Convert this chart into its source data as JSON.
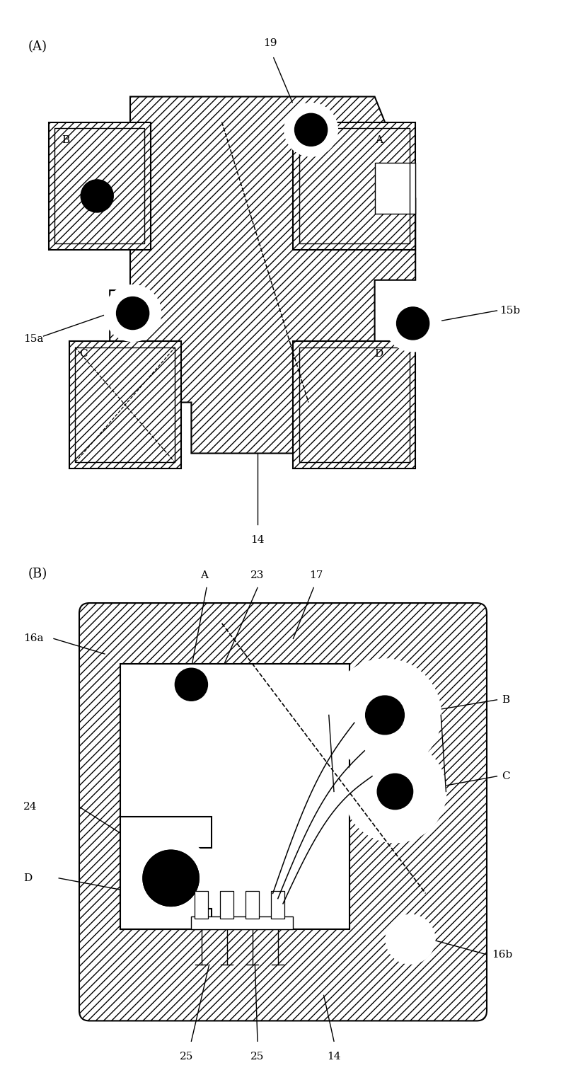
{
  "bg_color": "#ffffff",
  "fig_width": 8.0,
  "fig_height": 15.19,
  "panel_A_label": "(A)",
  "panel_B_label": "(B)",
  "label_19": "19",
  "label_14_A": "14",
  "label_15a": "15a",
  "label_15b": "15b",
  "label_A_B": "A",
  "label_B_B": "B",
  "label_C_B": "C",
  "label_D_B": "D",
  "label_16a": "16a",
  "label_16b": "16b",
  "label_17": "17",
  "label_23": "23",
  "label_24": "24",
  "label_25a": "25",
  "label_25b": "25",
  "label_14_B": "14"
}
